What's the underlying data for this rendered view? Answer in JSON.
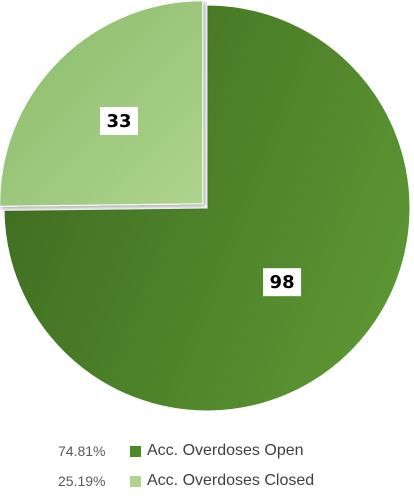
{
  "chart_data": {
    "type": "pie",
    "title": "",
    "start_angle_deg": 0,
    "exploded_slice": 1,
    "legend_position": "bottom",
    "slices": [
      {
        "label": "Acc. Overdoses Open",
        "value": 98,
        "percent": "74.81%",
        "value_label": "98",
        "color_dark": "#3d6b1f",
        "color_light": "#5c9533"
      },
      {
        "label": "Acc. Overdoses Closed",
        "value": 33,
        "percent": "25.19%",
        "value_label": "33",
        "color_dark": "#8aba6a",
        "color_light": "#aed48e"
      }
    ]
  }
}
